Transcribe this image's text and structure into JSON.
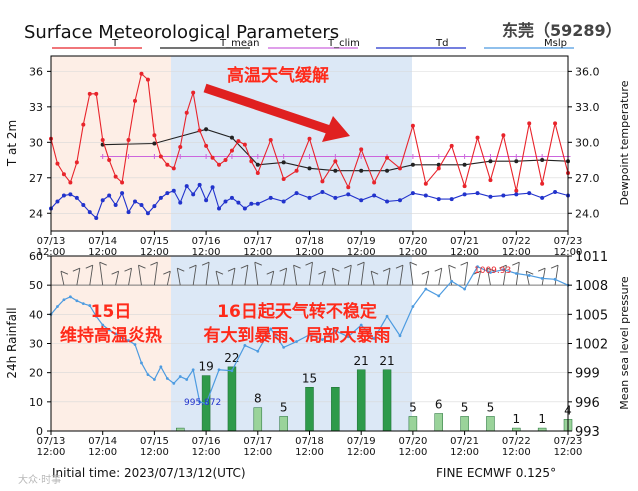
{
  "header": {
    "title": "Surface Meteorological Parameters",
    "station": "东莞（59289）",
    "init_time": "Initial time: 2023/07/13/12(UTC)",
    "model": "FINE ECMWF 0.125°",
    "watermark": "大众·时事"
  },
  "annotations": {
    "cooling": "高温天气缓解",
    "heat_line1": "15日",
    "heat_line2": "维持高温炎热",
    "rain_line1": "16日起天气转不稳定",
    "rain_line2": "有大到暴雨、局部大暴雨",
    "pressure_min": "995.872",
    "pressure_max": "1009.93"
  },
  "colors": {
    "T": "#e8242b",
    "T_mean": "#222222",
    "T_clim": "#cc66dd",
    "Td": "#2233cc",
    "Mslp": "#4d9be0",
    "rain_dark": "#2e9a4a",
    "rain_light": "#9ad39a",
    "heat_shade": "#fdeee6",
    "rain_shade": "#dce8f6",
    "arrow": "#e02020",
    "annot_text": "#ff2a1a"
  },
  "chart_data": [
    {
      "type": "line",
      "title": "Surface Meteorological Parameters",
      "ylabel": "T at 2m",
      "ylabel_right": "Dewpoint temperature",
      "ylim": [
        22.5,
        37.3
      ],
      "yticks_left": [
        "24",
        "27",
        "30",
        "33",
        "36"
      ],
      "yticks_right": [
        "24.0",
        "27.0",
        "30.0",
        "33.0",
        "36.0"
      ],
      "xlim": [
        0,
        10
      ],
      "xtick_labels": [
        [
          "07/13",
          "12:00"
        ],
        [
          "07/14",
          "12:00"
        ],
        [
          "07/15",
          "12:00"
        ],
        [
          "07/16",
          "12:00"
        ],
        [
          "07/17",
          "12:00"
        ],
        [
          "07/18",
          "12:00"
        ],
        [
          "07/19",
          "12:00"
        ],
        [
          "07/20",
          "12:00"
        ],
        [
          "07/21",
          "12:00"
        ],
        [
          "07/22",
          "12:00"
        ],
        [
          "07/23",
          "12:00"
        ]
      ],
      "legend": [
        "T",
        "T_mean",
        "T_clim",
        "Td",
        "Mslp"
      ],
      "series": [
        {
          "name": "T",
          "x": [
            0,
            0.125,
            0.25,
            0.375,
            0.5,
            0.625,
            0.75,
            0.875,
            1,
            1.125,
            1.25,
            1.375,
            1.5,
            1.625,
            1.75,
            1.875,
            2,
            2.125,
            2.25,
            2.375,
            2.5,
            2.625,
            2.75,
            2.875,
            3,
            3.125,
            3.25,
            3.375,
            3.5,
            3.625,
            3.75,
            3.875,
            4,
            4.25,
            4.5,
            4.75,
            5,
            5.25,
            5.5,
            5.75,
            6,
            6.25,
            6.5,
            6.75,
            7,
            7.25,
            7.5,
            7.75,
            8,
            8.25,
            8.5,
            8.75,
            9,
            9.25,
            9.5,
            9.75,
            10
          ],
          "values": [
            30.3,
            28.2,
            27.3,
            26.6,
            28.3,
            31.5,
            34.1,
            34.1,
            30.2,
            28.5,
            27.1,
            26.6,
            30.2,
            33.5,
            35.8,
            35.3,
            30.6,
            28.8,
            28.1,
            27.8,
            29.6,
            32.5,
            34.2,
            31.0,
            29.7,
            28.7,
            28.1,
            28.5,
            29.3,
            30.1,
            29.8,
            28.4,
            27.4,
            30.2,
            26.9,
            27.6,
            30.3,
            26.7,
            28.4,
            26.2,
            29.4,
            26.6,
            28.7,
            27.8,
            31.4,
            26.5,
            27.8,
            29.7,
            26.3,
            30.4,
            26.8,
            30.6,
            25.9,
            31.6,
            26.5,
            31.6,
            27.4
          ]
        },
        {
          "name": "T_mean",
          "x": [
            1,
            2,
            3,
            3.5,
            4,
            4.5,
            5,
            5.5,
            6,
            6.5,
            7,
            7.5,
            8,
            8.5,
            9,
            9.5,
            10
          ],
          "values": [
            29.8,
            29.9,
            31.1,
            30.4,
            28.1,
            28.3,
            27.8,
            27.6,
            27.6,
            27.6,
            28.1,
            28.1,
            28.1,
            28.4,
            28.4,
            28.5,
            28.4
          ]
        },
        {
          "name": "T_clim",
          "x": [
            1,
            1.5,
            2,
            2.5,
            3,
            3.5,
            4,
            4.5,
            5,
            5.5,
            6,
            6.5,
            7,
            7.5,
            8,
            8.5,
            9,
            9.5,
            10
          ],
          "values": [
            28.8,
            28.8,
            28.8,
            28.8,
            28.8,
            28.8,
            28.8,
            28.8,
            28.8,
            28.8,
            28.8,
            28.8,
            28.8,
            28.8,
            28.8,
            28.8,
            28.8,
            28.8,
            28.8
          ]
        },
        {
          "name": "Td",
          "x": [
            0,
            0.125,
            0.25,
            0.375,
            0.5,
            0.625,
            0.75,
            0.875,
            1,
            1.125,
            1.25,
            1.375,
            1.5,
            1.625,
            1.75,
            1.875,
            2,
            2.125,
            2.25,
            2.375,
            2.5,
            2.625,
            2.75,
            2.875,
            3,
            3.125,
            3.25,
            3.375,
            3.5,
            3.625,
            3.75,
            3.875,
            4,
            4.25,
            4.5,
            4.75,
            5,
            5.25,
            5.5,
            5.75,
            6,
            6.25,
            6.5,
            6.75,
            7,
            7.25,
            7.5,
            7.75,
            8,
            8.25,
            8.5,
            8.75,
            9,
            9.25,
            9.5,
            9.75,
            10
          ],
          "values": [
            24.4,
            25.0,
            25.5,
            25.6,
            25.3,
            24.7,
            24.1,
            23.6,
            25.1,
            25.5,
            24.7,
            25.7,
            24.1,
            25.0,
            24.7,
            24.0,
            24.6,
            25.3,
            25.7,
            25.9,
            24.9,
            26.3,
            25.6,
            26.4,
            25.1,
            26.2,
            24.4,
            25.0,
            25.3,
            24.9,
            24.4,
            24.8,
            24.8,
            25.3,
            25.0,
            25.7,
            25.3,
            25.8,
            25.3,
            25.6,
            25.1,
            25.5,
            25.0,
            25.1,
            25.7,
            25.5,
            25.2,
            25.2,
            25.6,
            25.7,
            25.4,
            25.5,
            25.6,
            25.7,
            25.3,
            25.8,
            25.5
          ]
        }
      ]
    },
    {
      "type": "bar",
      "ylabel": "24h Rainfall",
      "ylabel_right": "Mean sea level pressure",
      "ylim": [
        0,
        60
      ],
      "yticks_left": [
        "0",
        "10",
        "20",
        "30",
        "40",
        "50",
        "60"
      ],
      "yticks_right": [
        "993",
        "996",
        "999",
        "1002",
        "1005",
        "1008",
        "1011"
      ],
      "pressure_range": [
        993,
        1011
      ],
      "xtick_labels": [
        [
          "07/13",
          "12:00"
        ],
        [
          "07/14",
          "12:00"
        ],
        [
          "07/15",
          "12:00"
        ],
        [
          "07/16",
          "12:00"
        ],
        [
          "07/17",
          "12:00"
        ],
        [
          "07/18",
          "12:00"
        ],
        [
          "07/19",
          "12:00"
        ],
        [
          "07/20",
          "12:00"
        ],
        [
          "07/21",
          "12:00"
        ],
        [
          "07/22",
          "12:00"
        ],
        [
          "07/23",
          "12:00"
        ]
      ],
      "rain": {
        "x": [
          2.5,
          3.0,
          3.5,
          4.0,
          4.5,
          5.0,
          5.5,
          6.0,
          6.5,
          7.0,
          7.5,
          8.0,
          8.5,
          9.0,
          9.5,
          10.0
        ],
        "values": [
          1,
          19,
          22,
          8,
          5,
          15,
          15,
          21,
          21,
          5,
          6,
          5,
          5,
          1,
          1,
          4
        ],
        "labels": [
          "",
          "19",
          "22",
          "8",
          "5",
          "15",
          "",
          "21",
          "21",
          "5",
          "6",
          "5",
          "5",
          "1",
          "1",
          "4"
        ],
        "heavy": [
          false,
          true,
          true,
          false,
          false,
          true,
          true,
          true,
          true,
          false,
          false,
          false,
          false,
          false,
          false,
          false
        ]
      },
      "mslp": {
        "x": [
          0,
          0.125,
          0.25,
          0.375,
          0.5,
          0.625,
          0.75,
          0.875,
          1,
          1.125,
          1.25,
          1.375,
          1.5,
          1.625,
          1.75,
          1.875,
          2,
          2.125,
          2.25,
          2.375,
          2.5,
          2.625,
          2.75,
          2.875,
          3,
          3.25,
          3.5,
          3.75,
          4,
          4.25,
          4.5,
          4.75,
          5,
          5.25,
          5.5,
          5.75,
          6,
          6.25,
          6.5,
          6.75,
          7,
          7.25,
          7.5,
          7.75,
          8,
          8.25,
          8.5,
          8.75,
          9,
          9.25,
          9.5,
          9.75,
          10
        ],
        "values": [
          1005.0,
          1005.8,
          1006.5,
          1006.8,
          1006.4,
          1006.1,
          1005.9,
          1004.8,
          1003.9,
          1003.4,
          1003.0,
          1002.6,
          1002.3,
          1001.9,
          1000.0,
          998.8,
          998.3,
          999.6,
          998.4,
          997.9,
          998.6,
          998.3,
          999.3,
          996.0,
          995.8,
          999.3,
          999.2,
          1001.8,
          1001.2,
          1003.5,
          1001.6,
          1002.2,
          1002.9,
          1002.4,
          1003.3,
          1002.7,
          1003.9,
          1002.5,
          1004.8,
          1002.8,
          1005.8,
          1007.6,
          1006.9,
          1008.4,
          1007.6,
          1009.9,
          1009.3,
          1009.6,
          1009.2,
          1009.0,
          1008.7,
          1008.6,
          1008.0
        ]
      },
      "wind_barb_x": [
        0.25,
        0.5,
        0.75,
        1,
        1.25,
        1.5,
        1.75,
        2,
        2.25,
        2.5,
        2.75,
        3,
        3.25,
        3.5,
        3.75,
        4,
        4.25,
        4.5,
        4.75,
        5,
        5.25,
        5.5,
        5.75,
        6,
        6.25,
        6.5,
        6.75,
        7,
        7.25,
        7.5,
        7.75,
        8,
        8.25,
        8.5,
        8.75,
        9,
        9.25,
        9.5,
        9.75
      ]
    }
  ]
}
